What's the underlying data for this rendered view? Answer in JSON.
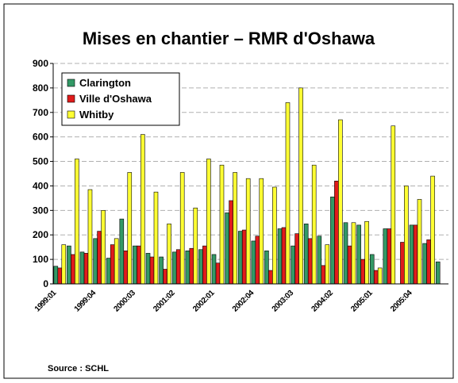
{
  "chart_data": {
    "type": "bar",
    "title": "Mises en chantier – RMR d'Oshawa",
    "source": "Source : SCHL",
    "categories": [
      "1999:01",
      null,
      null,
      "1999:04",
      null,
      null,
      "2000:03",
      null,
      null,
      "2001:02",
      null,
      null,
      "2002:01",
      null,
      null,
      "2002:04",
      null,
      null,
      "2003:03",
      null,
      null,
      "2004:02",
      null,
      null,
      "2005:01",
      null,
      null,
      "2005:04",
      null,
      null
    ],
    "series": [
      {
        "name": "Clarington",
        "color": "#339966",
        "values": [
          72,
          155,
          130,
          185,
          105,
          265,
          155,
          125,
          110,
          130,
          135,
          140,
          120,
          290,
          215,
          175,
          135,
          225,
          155,
          245,
          195,
          355,
          250,
          240,
          120,
          225,
          null,
          240,
          165,
          90
        ]
      },
      {
        "name": "Ville d'Oshawa",
        "color": "#e01b1b",
        "values": [
          65,
          120,
          125,
          215,
          160,
          135,
          155,
          110,
          60,
          140,
          145,
          155,
          85,
          340,
          220,
          195,
          55,
          230,
          205,
          185,
          75,
          420,
          155,
          100,
          55,
          225,
          170,
          240,
          180,
          null
        ]
      },
      {
        "name": "Whitby",
        "color": "#ffff33",
        "values": [
          160,
          510,
          385,
          300,
          185,
          455,
          610,
          375,
          245,
          455,
          310,
          510,
          485,
          455,
          430,
          430,
          395,
          740,
          800,
          485,
          160,
          670,
          250,
          255,
          65,
          645,
          400,
          345,
          440,
          null
        ]
      }
    ],
    "ylim": [
      0,
      900
    ],
    "yticks": [
      0,
      100,
      200,
      300,
      400,
      500,
      600,
      700,
      800,
      900
    ],
    "grid": true,
    "legend": "upper left"
  }
}
